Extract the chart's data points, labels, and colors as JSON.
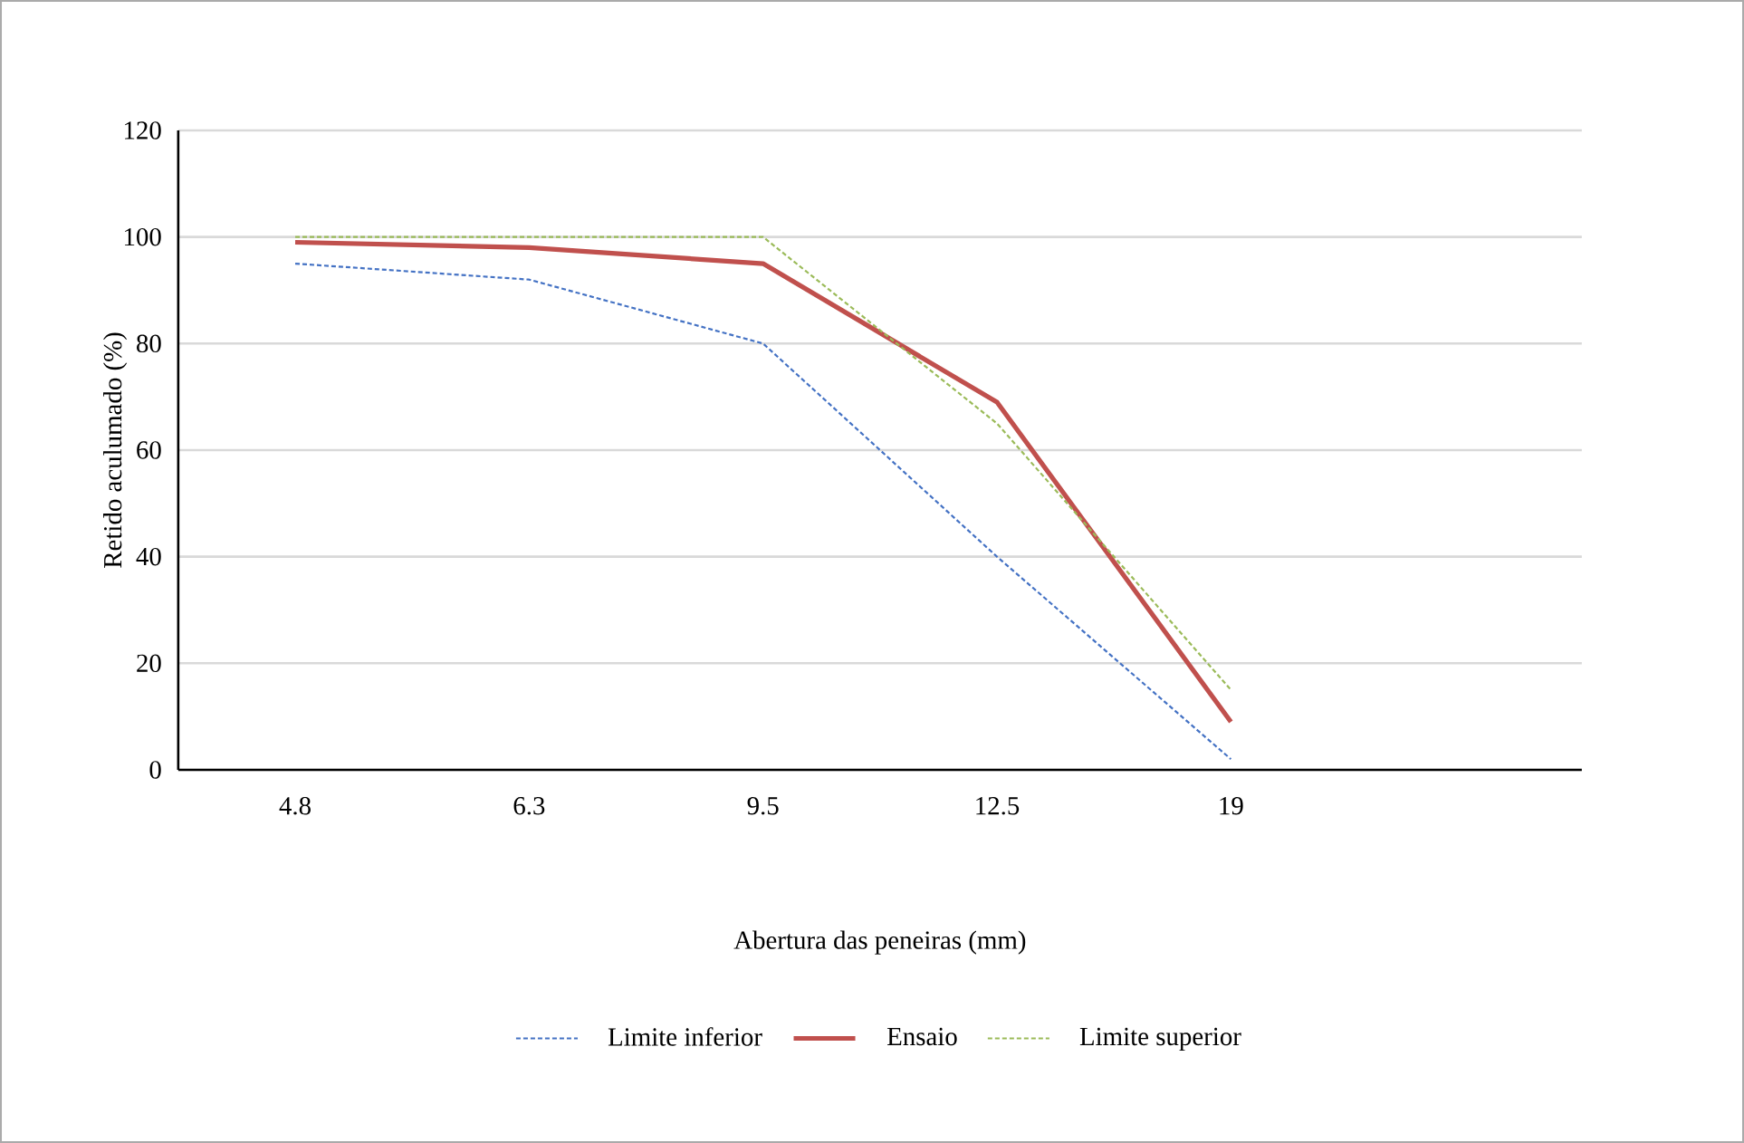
{
  "chart_data": {
    "type": "line",
    "xlabel": "Abertura das peneiras (mm)",
    "ylabel": "Retido aculumado (%)",
    "categories": [
      "4.8",
      "6.3",
      "9.5",
      "12.5",
      "19",
      null
    ],
    "series": [
      {
        "name": "Limite inferior",
        "color": "#4472c4",
        "line_style": "dashed",
        "values": [
          95,
          92,
          80,
          40,
          2,
          null
        ]
      },
      {
        "name": "Ensaio",
        "color": "#c0504d",
        "line_style": "solid",
        "values": [
          99,
          98,
          95,
          69,
          9,
          null
        ]
      },
      {
        "name": "Limite superior",
        "color": "#9bbb59",
        "line_style": "dashed",
        "values": [
          100,
          100,
          100,
          65,
          15,
          null
        ]
      }
    ],
    "ylim": [
      0,
      120
    ],
    "yticks": [
      0,
      20,
      40,
      60,
      80,
      100,
      120
    ],
    "grid": "y",
    "legend": "bottom"
  }
}
